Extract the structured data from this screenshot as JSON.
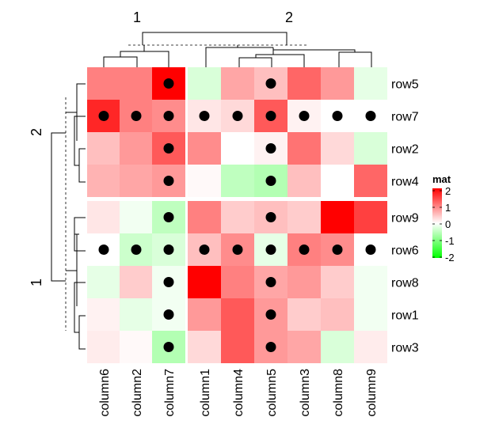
{
  "chart_data": {
    "type": "heatmap",
    "title": "",
    "columns": [
      "column6",
      "column2",
      "column7",
      "column1",
      "column4",
      "column5",
      "column3",
      "column8",
      "column9"
    ],
    "column_splits": [
      {
        "label": "1",
        "columns": [
          "column6",
          "column2",
          "column7"
        ]
      },
      {
        "label": "2",
        "columns": [
          "column1",
          "column4",
          "column5",
          "column3",
          "column8",
          "column9"
        ]
      }
    ],
    "rows": [
      "row5",
      "row7",
      "row2",
      "row4",
      "row9",
      "row6",
      "row8",
      "row1",
      "row3"
    ],
    "row_splits": [
      {
        "label": "2",
        "rows": [
          "row5",
          "row7",
          "row2",
          "row4"
        ]
      },
      {
        "label": "1",
        "rows": [
          "row9",
          "row6",
          "row8",
          "row1",
          "row3"
        ]
      }
    ],
    "values": [
      [
        1.0,
        1.0,
        2.0,
        -0.3,
        0.7,
        0.5,
        1.2,
        0.8,
        -0.2
      ],
      [
        1.7,
        1.0,
        0.9,
        0.2,
        0.3,
        1.3,
        0.1,
        0.0,
        0.0
      ],
      [
        0.5,
        0.8,
        1.3,
        0.9,
        0.0,
        0.1,
        1.1,
        0.3,
        -0.3
      ],
      [
        0.6,
        0.7,
        0.8,
        0.05,
        -0.5,
        -0.6,
        0.5,
        0.0,
        1.2
      ],
      [
        0.2,
        -0.1,
        -0.5,
        1.0,
        0.4,
        0.5,
        0.4,
        2.0,
        1.5
      ],
      [
        0.0,
        -0.4,
        -0.3,
        0.5,
        0.9,
        -0.2,
        1.0,
        0.9,
        0.0
      ],
      [
        -0.2,
        0.4,
        -0.1,
        2.0,
        1.0,
        0.7,
        0.8,
        0.4,
        -0.1
      ],
      [
        0.1,
        -0.2,
        -0.1,
        0.8,
        1.3,
        0.8,
        0.4,
        0.5,
        -0.1
      ],
      [
        0.15,
        0.05,
        -0.6,
        0.3,
        1.3,
        0.8,
        0.7,
        -0.3,
        0.15
      ]
    ],
    "dots": [
      [
        "column7",
        "column5"
      ],
      [
        "column6",
        "column2",
        "column7",
        "column1",
        "column4",
        "column5",
        "column3",
        "column8",
        "column9"
      ],
      [
        "column7",
        "column5"
      ],
      [
        "column7",
        "column5"
      ],
      [
        "column7",
        "column5"
      ],
      [
        "column6",
        "column2",
        "column7",
        "column1",
        "column4",
        "column5",
        "column3",
        "column8",
        "column9"
      ],
      [
        "column7",
        "column5"
      ],
      [
        "column7",
        "column5"
      ],
      [
        "column7",
        "column5"
      ]
    ],
    "legend": {
      "title": "mat",
      "ticks": [
        "2",
        "1",
        "0",
        "-1",
        "-2"
      ],
      "min": -2,
      "max": 2,
      "colors": {
        "low": "#00ff00",
        "mid": "#ffffff",
        "high": "#ff0000"
      }
    }
  }
}
